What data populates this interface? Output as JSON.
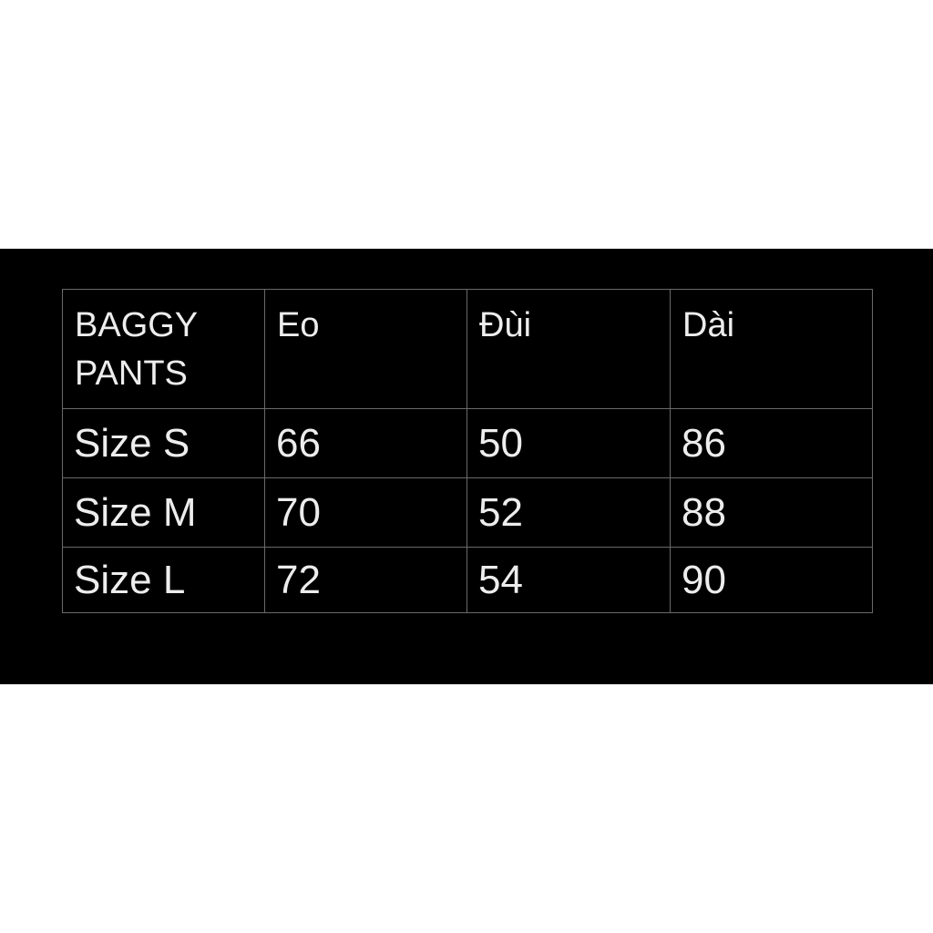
{
  "colors": {
    "page_background": "#ffffff",
    "band_background": "#000000",
    "table_border": "#6a6a6a",
    "table_text": "#ededed"
  },
  "chart_data": {
    "type": "table",
    "title": "BAGGY PANTS",
    "columns": [
      "BAGGY PANTS",
      "Eo",
      "Đùi",
      "Dài"
    ],
    "rows": [
      [
        "Size S",
        "66",
        "50",
        "86"
      ],
      [
        "Size M",
        "70",
        "52",
        "88"
      ],
      [
        "Size L",
        "72",
        "54",
        "90"
      ]
    ],
    "layout_hints": {
      "grid": "all-borders",
      "header_position": "top-row",
      "band_region": "black horizontal band centered vertically on white canvas"
    }
  }
}
